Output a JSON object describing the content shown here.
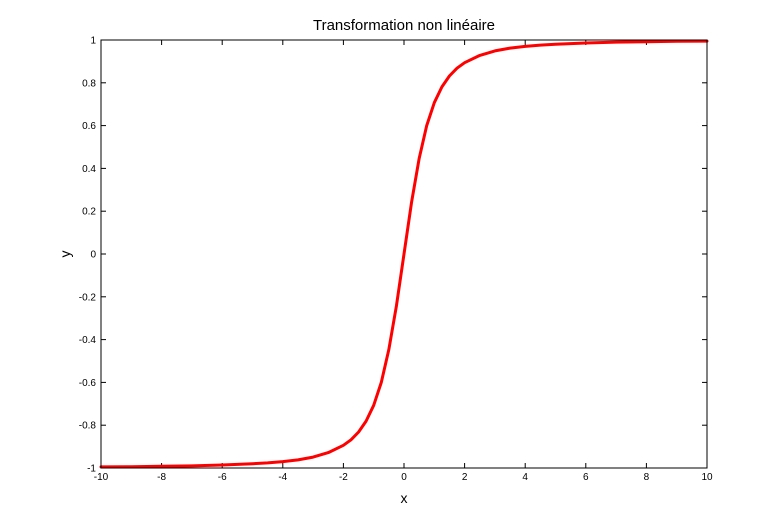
{
  "colors": {
    "background": "#ffffff",
    "axes": "#000000",
    "series": "#ff0000"
  },
  "chart_data": {
    "type": "line",
    "title": "Transformation non linéaire",
    "xlabel": "x",
    "ylabel": "y",
    "xlim": [
      -10,
      10
    ],
    "ylim": [
      -1,
      1
    ],
    "xticks": [
      "-10",
      "-8",
      "-6",
      "-4",
      "-2",
      "0",
      "2",
      "4",
      "6",
      "8",
      "10"
    ],
    "yticks": [
      "-1",
      "-0.8",
      "-0.6",
      "-0.4",
      "-0.2",
      "0",
      "0.2",
      "0.4",
      "0.6",
      "0.8",
      "1"
    ],
    "grid": false,
    "legend": "none",
    "series": [
      {
        "x": [
          -10,
          -9,
          -8,
          -7,
          -6,
          -5,
          -4.5,
          -4,
          -3.5,
          -3,
          -2.5,
          -2,
          -1.75,
          -1.5,
          -1.25,
          -1,
          -0.75,
          -0.5,
          -0.25,
          0,
          0.25,
          0.5,
          0.75,
          1,
          1.25,
          1.5,
          1.75,
          2,
          2.5,
          3,
          3.5,
          4,
          4.5,
          5,
          6,
          7,
          8,
          9,
          10
        ],
        "y": [
          -0.995,
          -0.994,
          -0.992,
          -0.99,
          -0.986,
          -0.98,
          -0.976,
          -0.97,
          -0.962,
          -0.949,
          -0.928,
          -0.894,
          -0.868,
          -0.832,
          -0.781,
          -0.707,
          -0.6,
          -0.447,
          -0.243,
          0,
          0.243,
          0.447,
          0.6,
          0.707,
          0.781,
          0.832,
          0.868,
          0.894,
          0.928,
          0.949,
          0.962,
          0.97,
          0.976,
          0.98,
          0.986,
          0.99,
          0.992,
          0.994,
          0.995
        ]
      }
    ]
  }
}
